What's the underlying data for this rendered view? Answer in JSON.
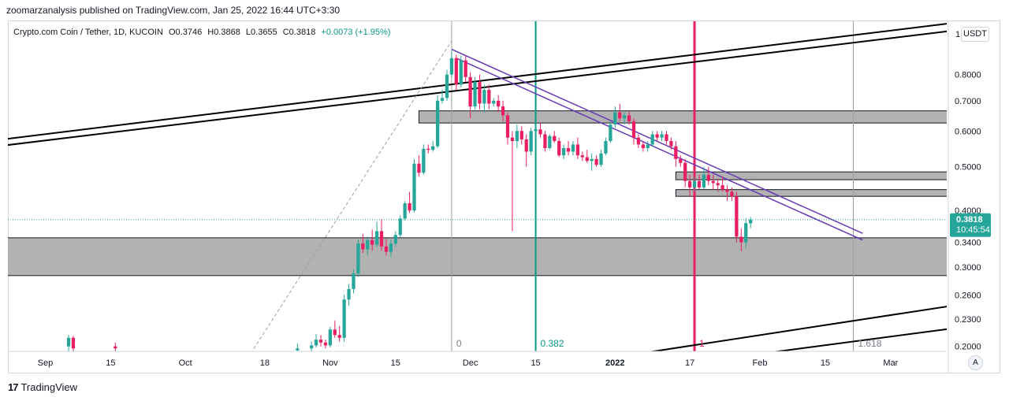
{
  "header": {
    "publisher": "zoomarzanalysis published on TradingView.com, Jan 25, 2022 16:44 UTC+3:30"
  },
  "legend": {
    "symbol": "Crypto.com Coin / Tether, 1D, KUCOIN",
    "open": "O0.3746",
    "high": "H0.3868",
    "low": "L0.3655",
    "close": "C0.3818",
    "change": "+0.0073 (+1.95%)"
  },
  "currency_button": "USDT",
  "axis_auto_button": "A",
  "footer": {
    "brand": "TradingView"
  },
  "price_label": {
    "price": "0.3818",
    "countdown": "10:45:54"
  },
  "fib_labels": [
    "0",
    "0.382",
    "1",
    "1.618"
  ],
  "colors": {
    "up": "#26a69a",
    "down": "#e91e63",
    "teal_line": "#089981",
    "magenta_line": "#e91e63",
    "purple_channel": "#673ab7",
    "zone_fill": "#b2b2b2",
    "price_tag": "#26a69a"
  },
  "chart_data": {
    "type": "candlestick",
    "title": "Crypto.com Coin / Tether, 1D, KUCOIN",
    "y_scale": "log",
    "ylim": [
      0.195,
      1.05
    ],
    "y_ticks": [
      "0.8000",
      "0.7000",
      "0.6000",
      "0.5000",
      "0.4000",
      "0.3400",
      "0.3000",
      "0.2600",
      "0.2300",
      "0.2000"
    ],
    "x_range": [
      "2021-08-24",
      "2022-03-13"
    ],
    "x_ticks": [
      "Sep",
      "15",
      "Oct",
      "18",
      "Nov",
      "15",
      "Dec",
      "15",
      "2022",
      "17",
      "Feb",
      "15",
      "Mar"
    ],
    "x_tick_dates": [
      "2021-09-01",
      "2021-09-15",
      "2021-10-01",
      "2021-10-18",
      "2021-11-01",
      "2021-11-15",
      "2021-12-01",
      "2021-12-15",
      "2022-01-01",
      "2022-01-17",
      "2022-02-01",
      "2022-02-15",
      "2022-03-01"
    ],
    "last_price": 0.3818,
    "candles": [
      {
        "d": "2021-09-06",
        "o": 0.2,
        "h": 0.212,
        "l": 0.195,
        "c": 0.209
      },
      {
        "d": "2021-09-07",
        "o": 0.209,
        "h": 0.211,
        "l": 0.195,
        "c": 0.198
      },
      {
        "d": "2021-09-16",
        "o": 0.2,
        "h": 0.204,
        "l": 0.195,
        "c": 0.198
      },
      {
        "d": "2021-10-25",
        "o": 0.196,
        "h": 0.203,
        "l": 0.195,
        "c": 0.198
      },
      {
        "d": "2021-10-28",
        "o": 0.198,
        "h": 0.205,
        "l": 0.195,
        "c": 0.201
      },
      {
        "d": "2021-10-29",
        "o": 0.201,
        "h": 0.213,
        "l": 0.199,
        "c": 0.207
      },
      {
        "d": "2021-10-30",
        "o": 0.207,
        "h": 0.212,
        "l": 0.2,
        "c": 0.204
      },
      {
        "d": "2021-10-31",
        "o": 0.204,
        "h": 0.207,
        "l": 0.198,
        "c": 0.201
      },
      {
        "d": "2021-11-01",
        "o": 0.201,
        "h": 0.221,
        "l": 0.199,
        "c": 0.218
      },
      {
        "d": "2021-11-02",
        "o": 0.218,
        "h": 0.228,
        "l": 0.209,
        "c": 0.212
      },
      {
        "d": "2021-11-03",
        "o": 0.212,
        "h": 0.222,
        "l": 0.205,
        "c": 0.209
      },
      {
        "d": "2021-11-04",
        "o": 0.209,
        "h": 0.26,
        "l": 0.205,
        "c": 0.254
      },
      {
        "d": "2021-11-05",
        "o": 0.254,
        "h": 0.275,
        "l": 0.246,
        "c": 0.268
      },
      {
        "d": "2021-11-06",
        "o": 0.268,
        "h": 0.296,
        "l": 0.262,
        "c": 0.29
      },
      {
        "d": "2021-11-07",
        "o": 0.29,
        "h": 0.345,
        "l": 0.285,
        "c": 0.338
      },
      {
        "d": "2021-11-08",
        "o": 0.338,
        "h": 0.355,
        "l": 0.322,
        "c": 0.328
      },
      {
        "d": "2021-11-09",
        "o": 0.328,
        "h": 0.35,
        "l": 0.318,
        "c": 0.344
      },
      {
        "d": "2021-11-10",
        "o": 0.344,
        "h": 0.363,
        "l": 0.326,
        "c": 0.336
      },
      {
        "d": "2021-11-11",
        "o": 0.336,
        "h": 0.378,
        "l": 0.332,
        "c": 0.36
      },
      {
        "d": "2021-11-12",
        "o": 0.36,
        "h": 0.382,
        "l": 0.326,
        "c": 0.333
      },
      {
        "d": "2021-11-13",
        "o": 0.333,
        "h": 0.346,
        "l": 0.318,
        "c": 0.324
      },
      {
        "d": "2021-11-14",
        "o": 0.324,
        "h": 0.345,
        "l": 0.316,
        "c": 0.338
      },
      {
        "d": "2021-11-15",
        "o": 0.338,
        "h": 0.36,
        "l": 0.332,
        "c": 0.353
      },
      {
        "d": "2021-11-16",
        "o": 0.353,
        "h": 0.39,
        "l": 0.348,
        "c": 0.384
      },
      {
        "d": "2021-11-17",
        "o": 0.384,
        "h": 0.42,
        "l": 0.38,
        "c": 0.415
      },
      {
        "d": "2021-11-18",
        "o": 0.415,
        "h": 0.44,
        "l": 0.395,
        "c": 0.4
      },
      {
        "d": "2021-11-19",
        "o": 0.4,
        "h": 0.52,
        "l": 0.396,
        "c": 0.508
      },
      {
        "d": "2021-11-20",
        "o": 0.508,
        "h": 0.53,
        "l": 0.475,
        "c": 0.485
      },
      {
        "d": "2021-11-21",
        "o": 0.485,
        "h": 0.56,
        "l": 0.48,
        "c": 0.548
      },
      {
        "d": "2021-11-22",
        "o": 0.548,
        "h": 0.56,
        "l": 0.535,
        "c": 0.545
      },
      {
        "d": "2021-11-23",
        "o": 0.545,
        "h": 0.57,
        "l": 0.54,
        "c": 0.555
      },
      {
        "d": "2021-11-24",
        "o": 0.555,
        "h": 0.72,
        "l": 0.55,
        "c": 0.7
      },
      {
        "d": "2021-11-25",
        "o": 0.7,
        "h": 0.74,
        "l": 0.69,
        "c": 0.71
      },
      {
        "d": "2021-11-26",
        "o": 0.71,
        "h": 0.82,
        "l": 0.7,
        "c": 0.8
      },
      {
        "d": "2021-11-27",
        "o": 0.8,
        "h": 0.9,
        "l": 0.79,
        "c": 0.87
      },
      {
        "d": "2021-11-28",
        "o": 0.87,
        "h": 0.885,
        "l": 0.74,
        "c": 0.76
      },
      {
        "d": "2021-11-29",
        "o": 0.76,
        "h": 0.88,
        "l": 0.75,
        "c": 0.86
      },
      {
        "d": "2021-11-30",
        "o": 0.86,
        "h": 0.88,
        "l": 0.77,
        "c": 0.79
      },
      {
        "d": "2021-12-01",
        "o": 0.79,
        "h": 0.81,
        "l": 0.64,
        "c": 0.68
      },
      {
        "d": "2021-12-02",
        "o": 0.68,
        "h": 0.79,
        "l": 0.67,
        "c": 0.77
      },
      {
        "d": "2021-12-03",
        "o": 0.77,
        "h": 0.8,
        "l": 0.67,
        "c": 0.69
      },
      {
        "d": "2021-12-04",
        "o": 0.69,
        "h": 0.76,
        "l": 0.66,
        "c": 0.74
      },
      {
        "d": "2021-12-05",
        "o": 0.74,
        "h": 0.76,
        "l": 0.67,
        "c": 0.69
      },
      {
        "d": "2021-12-06",
        "o": 0.69,
        "h": 0.71,
        "l": 0.68,
        "c": 0.7
      },
      {
        "d": "2021-12-07",
        "o": 0.7,
        "h": 0.72,
        "l": 0.66,
        "c": 0.68
      },
      {
        "d": "2021-12-08",
        "o": 0.68,
        "h": 0.7,
        "l": 0.63,
        "c": 0.65
      },
      {
        "d": "2021-12-09",
        "o": 0.65,
        "h": 0.66,
        "l": 0.56,
        "c": 0.58
      },
      {
        "d": "2021-12-10",
        "o": 0.58,
        "h": 0.6,
        "l": 0.36,
        "c": 0.57
      },
      {
        "d": "2021-12-11",
        "o": 0.57,
        "h": 0.62,
        "l": 0.55,
        "c": 0.6
      },
      {
        "d": "2021-12-12",
        "o": 0.6,
        "h": 0.615,
        "l": 0.56,
        "c": 0.575
      },
      {
        "d": "2021-12-13",
        "o": 0.575,
        "h": 0.59,
        "l": 0.5,
        "c": 0.54
      },
      {
        "d": "2021-12-14",
        "o": 0.54,
        "h": 0.61,
        "l": 0.53,
        "c": 0.6
      },
      {
        "d": "2021-12-15",
        "o": 0.6,
        "h": 0.62,
        "l": 0.58,
        "c": 0.605
      },
      {
        "d": "2021-12-16",
        "o": 0.605,
        "h": 0.625,
        "l": 0.58,
        "c": 0.59
      },
      {
        "d": "2021-12-17",
        "o": 0.59,
        "h": 0.6,
        "l": 0.54,
        "c": 0.55
      },
      {
        "d": "2021-12-18",
        "o": 0.55,
        "h": 0.59,
        "l": 0.545,
        "c": 0.585
      },
      {
        "d": "2021-12-19",
        "o": 0.585,
        "h": 0.6,
        "l": 0.565,
        "c": 0.57
      },
      {
        "d": "2021-12-20",
        "o": 0.57,
        "h": 0.58,
        "l": 0.525,
        "c": 0.53
      },
      {
        "d": "2021-12-21",
        "o": 0.53,
        "h": 0.56,
        "l": 0.52,
        "c": 0.55
      },
      {
        "d": "2021-12-22",
        "o": 0.55,
        "h": 0.57,
        "l": 0.53,
        "c": 0.54
      },
      {
        "d": "2021-12-23",
        "o": 0.54,
        "h": 0.57,
        "l": 0.53,
        "c": 0.56
      },
      {
        "d": "2021-12-24",
        "o": 0.56,
        "h": 0.58,
        "l": 0.52,
        "c": 0.53
      },
      {
        "d": "2021-12-25",
        "o": 0.53,
        "h": 0.54,
        "l": 0.515,
        "c": 0.525
      },
      {
        "d": "2021-12-26",
        "o": 0.525,
        "h": 0.545,
        "l": 0.51,
        "c": 0.515
      },
      {
        "d": "2021-12-27",
        "o": 0.515,
        "h": 0.535,
        "l": 0.49,
        "c": 0.52
      },
      {
        "d": "2021-12-28",
        "o": 0.52,
        "h": 0.53,
        "l": 0.5,
        "c": 0.505
      },
      {
        "d": "2021-12-29",
        "o": 0.505,
        "h": 0.545,
        "l": 0.5,
        "c": 0.535
      },
      {
        "d": "2021-12-30",
        "o": 0.535,
        "h": 0.58,
        "l": 0.53,
        "c": 0.57
      },
      {
        "d": "2021-12-31",
        "o": 0.57,
        "h": 0.63,
        "l": 0.565,
        "c": 0.62
      },
      {
        "d": "2022-01-01",
        "o": 0.62,
        "h": 0.68,
        "l": 0.61,
        "c": 0.66
      },
      {
        "d": "2022-01-02",
        "o": 0.66,
        "h": 0.69,
        "l": 0.63,
        "c": 0.64
      },
      {
        "d": "2022-01-03",
        "o": 0.64,
        "h": 0.66,
        "l": 0.62,
        "c": 0.65
      },
      {
        "d": "2022-01-04",
        "o": 0.65,
        "h": 0.665,
        "l": 0.62,
        "c": 0.63
      },
      {
        "d": "2022-01-05",
        "o": 0.63,
        "h": 0.64,
        "l": 0.56,
        "c": 0.58
      },
      {
        "d": "2022-01-06",
        "o": 0.58,
        "h": 0.59,
        "l": 0.55,
        "c": 0.56
      },
      {
        "d": "2022-01-07",
        "o": 0.56,
        "h": 0.57,
        "l": 0.54,
        "c": 0.55
      },
      {
        "d": "2022-01-08",
        "o": 0.55,
        "h": 0.57,
        "l": 0.54,
        "c": 0.56
      },
      {
        "d": "2022-01-09",
        "o": 0.56,
        "h": 0.6,
        "l": 0.555,
        "c": 0.59
      },
      {
        "d": "2022-01-10",
        "o": 0.59,
        "h": 0.6,
        "l": 0.57,
        "c": 0.58
      },
      {
        "d": "2022-01-11",
        "o": 0.58,
        "h": 0.6,
        "l": 0.57,
        "c": 0.59
      },
      {
        "d": "2022-01-12",
        "o": 0.59,
        "h": 0.6,
        "l": 0.56,
        "c": 0.57
      },
      {
        "d": "2022-01-13",
        "o": 0.57,
        "h": 0.58,
        "l": 0.545,
        "c": 0.555
      },
      {
        "d": "2022-01-14",
        "o": 0.555,
        "h": 0.57,
        "l": 0.5,
        "c": 0.52
      },
      {
        "d": "2022-01-15",
        "o": 0.52,
        "h": 0.53,
        "l": 0.5,
        "c": 0.51
      },
      {
        "d": "2022-01-16",
        "o": 0.51,
        "h": 0.52,
        "l": 0.45,
        "c": 0.465
      },
      {
        "d": "2022-01-17",
        "o": 0.465,
        "h": 0.48,
        "l": 0.43,
        "c": 0.45
      },
      {
        "d": "2022-01-18",
        "o": 0.45,
        "h": 0.475,
        "l": 0.44,
        "c": 0.465
      },
      {
        "d": "2022-01-19",
        "o": 0.465,
        "h": 0.48,
        "l": 0.445,
        "c": 0.45
      },
      {
        "d": "2022-01-20",
        "o": 0.45,
        "h": 0.5,
        "l": 0.445,
        "c": 0.48
      },
      {
        "d": "2022-01-21",
        "o": 0.48,
        "h": 0.5,
        "l": 0.455,
        "c": 0.465
      },
      {
        "d": "2022-01-22",
        "o": 0.465,
        "h": 0.48,
        "l": 0.445,
        "c": 0.46
      },
      {
        "d": "2022-01-23",
        "o": 0.46,
        "h": 0.47,
        "l": 0.44,
        "c": 0.455
      },
      {
        "d": "2022-01-24",
        "o": 0.455,
        "h": 0.475,
        "l": 0.44,
        "c": 0.445
      },
      {
        "d": "2022-01-25",
        "o": 0.445,
        "h": 0.455,
        "l": 0.42,
        "c": 0.44
      },
      {
        "d": "2022-01-26",
        "o": 0.44,
        "h": 0.45,
        "l": 0.42,
        "c": 0.43
      },
      {
        "d": "2022-01-27",
        "o": 0.43,
        "h": 0.44,
        "l": 0.34,
        "c": 0.35
      },
      {
        "d": "2022-01-28",
        "o": 0.35,
        "h": 0.365,
        "l": 0.325,
        "c": 0.34
      },
      {
        "d": "2022-01-29",
        "o": 0.34,
        "h": 0.385,
        "l": 0.33,
        "c": 0.375
      },
      {
        "d": "2022-01-30",
        "o": 0.3746,
        "h": 0.3868,
        "l": 0.3655,
        "c": 0.3818
      }
    ]
  },
  "drawings": {
    "zones": [
      {
        "from": "2021-11-20",
        "to": "2022-03-14",
        "p1": 0.625,
        "p2": 0.665
      },
      {
        "from": "2022-01-14",
        "to": "2022-03-14",
        "p1": 0.468,
        "p2": 0.487
      },
      {
        "from": "2022-01-14",
        "to": "2022-03-14",
        "p1": 0.43,
        "p2": 0.445
      },
      {
        "from": "2021-08-23",
        "to": "2022-03-14",
        "p1": 0.287,
        "p2": 0.348
      }
    ],
    "lines": [
      {
        "x1": "2021-08-23",
        "y1": 0.575,
        "x2": "2022-03-14",
        "y2": 1.04,
        "color": "#000000",
        "w": 2
      },
      {
        "x1": "2021-08-23",
        "y1": 0.557,
        "x2": "2022-03-14",
        "y2": 1.0,
        "color": "#000000",
        "w": 2
      },
      {
        "x1": "2022-01-05",
        "y1": 0.192,
        "x2": "2022-03-14",
        "y2": 0.246,
        "color": "#000000",
        "w": 2
      },
      {
        "x1": "2022-01-31",
        "y1": 0.192,
        "x2": "2022-03-14",
        "y2": 0.219,
        "color": "#000000",
        "w": 2
      },
      {
        "x1": "2021-11-27",
        "y1": 0.91,
        "x2": "2022-02-23",
        "y2": 0.356,
        "color": "#673ab7",
        "w": 1.5
      },
      {
        "x1": "2021-11-28",
        "y1": 0.87,
        "x2": "2022-02-23",
        "y2": 0.344,
        "color": "#673ab7",
        "w": 1.5
      },
      {
        "x1": "2021-10-15",
        "y1": 0.193,
        "x2": "2021-11-27",
        "y2": 0.95,
        "color": "#9e9e9e",
        "w": 1,
        "dash": true
      }
    ],
    "vlines": [
      {
        "d": "2021-11-27",
        "color": "#9e9e9e",
        "w": 1
      },
      {
        "d": "2021-12-15",
        "color": "#089981",
        "w": 2
      },
      {
        "d": "2022-01-18",
        "color": "#e91e63",
        "w": 3
      },
      {
        "d": "2022-02-21",
        "color": "#9e9e9e",
        "w": 1
      }
    ],
    "fib_label_dates": [
      "2021-11-28",
      "2021-12-16",
      "2022-01-19",
      "2022-02-22"
    ]
  }
}
